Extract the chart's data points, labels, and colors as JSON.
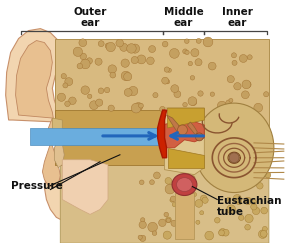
{
  "bg_color": "#ffffff",
  "labels": {
    "outer_ear": "Outer\near",
    "middle_ear": "Middle\near",
    "inner_ear": "Inner\near",
    "pressure": "Pressure",
    "eustachian": "Eustachian\ntube"
  },
  "bracket_color": "#444444",
  "text_color": "#111111",
  "colors": {
    "pinna_outer": "#f0cfa0",
    "pinna_inner": "#e8b888",
    "pinna_edge": "#c09060",
    "canal_yellow": "#d4a840",
    "canal_blue": "#5090d0",
    "bone_porous": "#ddc088",
    "bone_solid": "#c8a060",
    "eardrum_red": "#cc2200",
    "ossicle": "#c08050",
    "cochlea_bg": "#d4a870",
    "cochlea_spiral": "#8a5030",
    "eust_red": "#cc4444",
    "nerve_lines": "#c09050",
    "middle_cavity": "#e8d0a0",
    "skin_pink": "#f0d8c0"
  },
  "fontsize": 7.5
}
